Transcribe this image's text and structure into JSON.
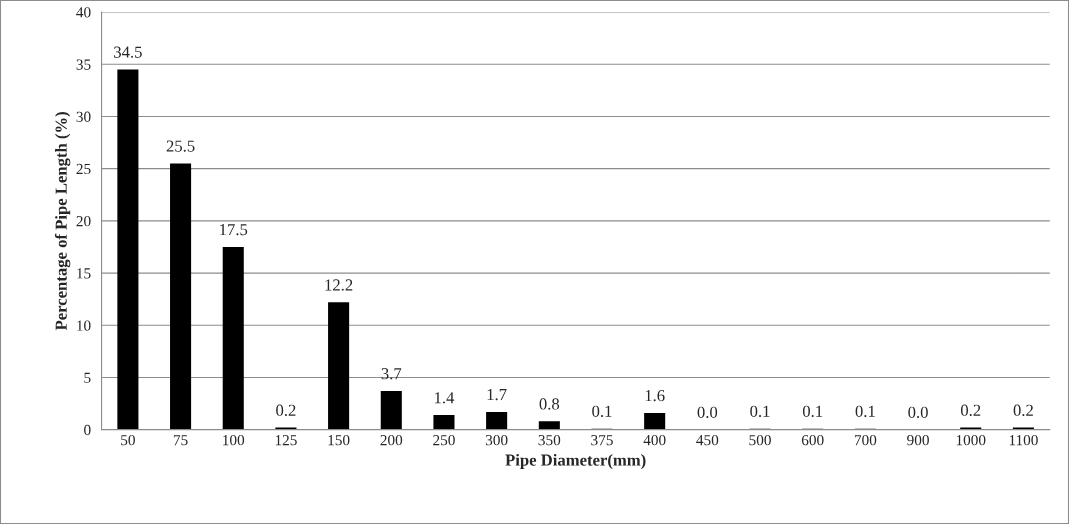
{
  "chart_data": {
    "type": "bar",
    "xlabel": "Pipe Diameter(mm)",
    "ylabel": "Percentage of Pipe Length (%)",
    "categories": [
      "50",
      "75",
      "100",
      "125",
      "150",
      "200",
      "250",
      "300",
      "350",
      "375",
      "400",
      "450",
      "500",
      "600",
      "700",
      "900",
      "1000",
      "1100"
    ],
    "values": [
      34.5,
      25.5,
      17.5,
      0.2,
      12.2,
      3.7,
      1.4,
      1.7,
      0.8,
      0.1,
      1.6,
      0.0,
      0.1,
      0.1,
      0.1,
      0.0,
      0.2,
      0.2
    ],
    "color": "#000000",
    "ylim": [
      0,
      40
    ],
    "yticks": [
      0,
      5,
      10,
      15,
      20,
      25,
      30,
      35,
      40
    ],
    "value_labels": [
      "34.5",
      "25.5",
      "17.5",
      "0.2",
      "12.2",
      "3.7",
      "1.4",
      "1.7",
      "0.8",
      "0.1",
      "1.6",
      "0.0",
      "0.1",
      "0.1",
      "0.1",
      "0.0",
      "0.2",
      "0.2"
    ],
    "grid": "y"
  }
}
